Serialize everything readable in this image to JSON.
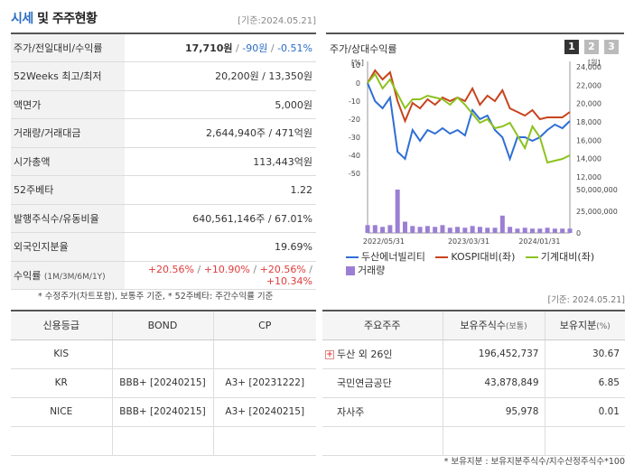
{
  "header": {
    "title_main": "시세",
    "title_join": " 및 ",
    "title_rest": "주주현황",
    "reference": "[기준:2024.05.21]"
  },
  "price_rows": [
    {
      "label": "주가/전일대비/수익률",
      "price": "17,710원",
      "change": "-90원",
      "rate": "-0.51%"
    },
    {
      "label": "52Weeks 최고/최저",
      "value": "20,200원 / 13,350원"
    },
    {
      "label": "액면가",
      "value": "5,000원"
    },
    {
      "label": "거래량/거래대금",
      "value": "2,644,940주 / 471억원"
    },
    {
      "label": "시가총액",
      "value": "113,443억원"
    },
    {
      "label": "52주베타",
      "value": "1.22"
    },
    {
      "label": "발행주식수/유동비율",
      "value": "640,561,146주 / 67.01%"
    },
    {
      "label": "외국인지분율",
      "value": "19.69%"
    }
  ],
  "returns": {
    "label": "수익률",
    "label_periods": "(1M/3M/6M/1Y)",
    "values": [
      "+20.56%",
      "+10.90%",
      "+20.56%",
      "+10.34%"
    ]
  },
  "foot_note": "* 수정주가(차트포함), 보통주 기준, * 52주베타: 주간수익률 기준",
  "reference2": "[기준: 2024.05.21]",
  "chart": {
    "title": "주가/상대수익률",
    "tabs": [
      "1",
      "2",
      "3"
    ],
    "legend": {
      "series1": "두산에너빌리티",
      "series2": "KOSPI대비(좌)",
      "series3": "기계대비(좌)",
      "volume": "거래량"
    },
    "colors": {
      "series1": "#2f6fd6",
      "series2": "#c8431e",
      "series3": "#8dc21f",
      "volume": "#9b7fd4"
    }
  },
  "chart_data": {
    "type": "line",
    "x_ticks": [
      "2022/05/31",
      "2023/03/31",
      "2024/01/31"
    ],
    "left_axis": {
      "unit": "[%]",
      "ticks": [
        10,
        0,
        -10,
        -20,
        -30,
        -40,
        -50
      ],
      "ylim": [
        -50,
        10
      ]
    },
    "right_axis": {
      "unit": "[원]",
      "ticks": [
        "24,000",
        "22,000",
        "20,000",
        "18,000",
        "16,000",
        "14,000",
        "12,000"
      ],
      "ylim": [
        12000,
        24000
      ]
    },
    "volume_axis": {
      "ticks": [
        "50,000,000",
        "25,000,000",
        "0"
      ],
      "ylim": [
        0,
        50000000
      ]
    },
    "series": [
      {
        "name": "두산에너빌리티",
        "axis": "left",
        "values": [
          0,
          -10,
          -14,
          -8,
          -38,
          -42,
          -26,
          -32,
          -26,
          -28,
          -25,
          -28,
          -26,
          -29,
          -15,
          -20,
          -18,
          -26,
          -30,
          -42,
          -30,
          -30,
          -32,
          -30,
          -26,
          -23,
          -25,
          -21
        ]
      },
      {
        "name": "KOSPI대비(좌)",
        "axis": "left",
        "values": [
          0,
          7,
          2,
          6,
          -10,
          -21,
          -11,
          -14,
          -9,
          -12,
          -8,
          -10,
          -8,
          -10,
          -3,
          -12,
          -7,
          -10,
          -4,
          -14,
          -16,
          -18,
          -15,
          -20,
          -19,
          -19,
          -19,
          -16
        ]
      },
      {
        "name": "기계대비(좌)",
        "axis": "left",
        "values": [
          0,
          5,
          -3,
          2,
          -6,
          -14,
          -9,
          -9,
          -7,
          -8,
          -9,
          -12,
          -8,
          -12,
          -17,
          -22,
          -20,
          -25,
          -24,
          -22,
          -29,
          -36,
          -24,
          -30,
          -44,
          -43,
          -42,
          -40
        ]
      }
    ],
    "volume": [
      9000000,
      9000000,
      7000000,
      9000000,
      52000000,
      13000000,
      8000000,
      7000000,
      8000000,
      7000000,
      9000000,
      6000000,
      7000000,
      6000000,
      8000000,
      7000000,
      6000000,
      6000000,
      20000000,
      7000000,
      5000000,
      6000000,
      5000000,
      5000000,
      6000000,
      5000000,
      5000000,
      5000000
    ]
  },
  "credit": {
    "headers": [
      "신용등급",
      "BOND",
      "CP"
    ],
    "rows": [
      {
        "agency": "KIS",
        "bond": "",
        "cp": ""
      },
      {
        "agency": "KR",
        "bond": "BBB+ [20240215]",
        "cp": "A3+ [20231222]"
      },
      {
        "agency": "NICE",
        "bond": "BBB+ [20240215]",
        "cp": "A3+ [20240215]"
      },
      {
        "agency": "",
        "bond": "",
        "cp": ""
      }
    ]
  },
  "holders": {
    "headers": {
      "holder": "주요주주",
      "shares": "보유주식수",
      "shares_unit": "(보통)",
      "ratio": "보유지분",
      "ratio_unit": "(%)"
    },
    "rows": [
      {
        "name": "두산 외 26인",
        "shares": "196,452,737",
        "ratio": "30.67",
        "expandable": true
      },
      {
        "name": "국민연금공단",
        "shares": "43,878,849",
        "ratio": "6.85",
        "expandable": false
      },
      {
        "name": "자사주",
        "shares": "95,978",
        "ratio": "0.01",
        "expandable": false
      },
      {
        "name": "",
        "shares": "",
        "ratio": "",
        "expandable": false
      }
    ],
    "expand_symbol": "+"
  },
  "foot_note2": "* 보유지분 : 보유지분주식수/지수산정주식수*100"
}
